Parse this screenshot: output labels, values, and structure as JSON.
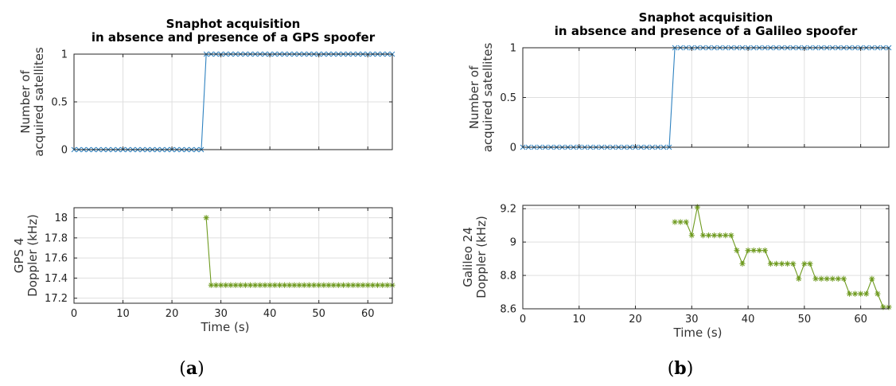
{
  "panels": [
    {
      "caption_pre": "(",
      "caption_letter": "a",
      "caption_post": ")",
      "charts": [
        {
          "type": "line",
          "title_lines": [
            "Snaphot acquisition",
            "in absence and presence of a GPS spoofer"
          ],
          "ylabel_lines": [
            "Number of",
            "acquired satellites"
          ],
          "xlabel": "",
          "xlim": [
            0,
            65
          ],
          "ylim": [
            0,
            1
          ],
          "xticks": [
            0,
            10,
            20,
            30,
            40,
            50,
            60
          ],
          "xtick_labels": [],
          "yticks": [
            0,
            0.5,
            1
          ],
          "ytick_labels": [
            "0",
            "0.5",
            "1"
          ],
          "grid": true,
          "series": [
            {
              "marker": "x",
              "color": "#2f82c0",
              "x_start": 0,
              "x_step": 1,
              "x_end": 65,
              "step_at": 27,
              "before": 0,
              "after": 1
            }
          ]
        },
        {
          "type": "line",
          "title_lines": [],
          "ylabel_lines": [
            "GPS 4",
            "Doppler (kHz)"
          ],
          "xlabel": "Time (s)",
          "xlim": [
            0,
            65
          ],
          "ylim": [
            17.15,
            18.1
          ],
          "xticks": [
            0,
            10,
            20,
            30,
            40,
            50,
            60
          ],
          "xtick_labels": [
            "0",
            "10",
            "20",
            "30",
            "40",
            "50",
            "60"
          ],
          "yticks": [
            17.2,
            17.4,
            17.6,
            17.8,
            18
          ],
          "ytick_labels": [
            "17.2",
            "17.4",
            "17.6",
            "17.8",
            "18"
          ],
          "grid": true,
          "series": [
            {
              "marker": "*",
              "color": "#6e9a1f",
              "points": [
                [
                  27,
                  18.0
                ],
                [
                  28,
                  17.33
                ],
                [
                  29,
                  17.33
                ],
                [
                  30,
                  17.33
                ],
                [
                  31,
                  17.33
                ],
                [
                  32,
                  17.33
                ],
                [
                  33,
                  17.33
                ],
                [
                  34,
                  17.33
                ],
                [
                  35,
                  17.33
                ],
                [
                  36,
                  17.33
                ],
                [
                  37,
                  17.33
                ],
                [
                  38,
                  17.33
                ],
                [
                  39,
                  17.33
                ],
                [
                  40,
                  17.33
                ],
                [
                  41,
                  17.33
                ],
                [
                  42,
                  17.33
                ],
                [
                  43,
                  17.33
                ],
                [
                  44,
                  17.33
                ],
                [
                  45,
                  17.33
                ],
                [
                  46,
                  17.33
                ],
                [
                  47,
                  17.33
                ],
                [
                  48,
                  17.33
                ],
                [
                  49,
                  17.33
                ],
                [
                  50,
                  17.33
                ],
                [
                  51,
                  17.33
                ],
                [
                  52,
                  17.33
                ],
                [
                  53,
                  17.33
                ],
                [
                  54,
                  17.33
                ],
                [
                  55,
                  17.33
                ],
                [
                  56,
                  17.33
                ],
                [
                  57,
                  17.33
                ],
                [
                  58,
                  17.33
                ],
                [
                  59,
                  17.33
                ],
                [
                  60,
                  17.33
                ],
                [
                  61,
                  17.33
                ],
                [
                  62,
                  17.33
                ],
                [
                  63,
                  17.33
                ],
                [
                  64,
                  17.33
                ],
                [
                  65,
                  17.33
                ]
              ]
            }
          ]
        }
      ]
    },
    {
      "caption_pre": "(",
      "caption_letter": "b",
      "caption_post": ")",
      "charts": [
        {
          "type": "line",
          "title_lines": [
            "Snaphot acquisition",
            "in absence and presence of a Galileo spoofer"
          ],
          "ylabel_lines": [
            "Number of",
            "acquired satellites"
          ],
          "xlabel": "",
          "xlim": [
            0,
            65
          ],
          "ylim": [
            0,
            1
          ],
          "xticks": [
            0,
            10,
            20,
            30,
            40,
            50,
            60
          ],
          "xtick_labels": [],
          "yticks": [
            0,
            0.5,
            1
          ],
          "ytick_labels": [
            "0",
            "0.5",
            "1"
          ],
          "grid": true,
          "series": [
            {
              "marker": "x",
              "color": "#2f82c0",
              "x_start": 0,
              "x_step": 1,
              "x_end": 65,
              "step_at": 27,
              "before": 0,
              "after": 1
            }
          ]
        },
        {
          "type": "line",
          "title_lines": [],
          "ylabel_lines": [
            "Galileo 24",
            "Doppler (kHz)"
          ],
          "xlabel": "Time (s)",
          "xlim": [
            0,
            65
          ],
          "ylim": [
            8.6,
            9.22
          ],
          "xticks": [
            0,
            10,
            20,
            30,
            40,
            50,
            60
          ],
          "xtick_labels": [
            "0",
            "10",
            "20",
            "30",
            "40",
            "50",
            "60"
          ],
          "yticks": [
            8.6,
            8.8,
            9,
            9.2
          ],
          "ytick_labels": [
            "8.6",
            "8.8",
            "9",
            "9.2"
          ],
          "grid": true,
          "series": [
            {
              "marker": "*",
              "color": "#6e9a1f",
              "points": [
                [
                  27,
                  9.12
                ],
                [
                  28,
                  9.12
                ],
                [
                  29,
                  9.12
                ],
                [
                  30,
                  9.04
                ],
                [
                  31,
                  9.21
                ],
                [
                  32,
                  9.04
                ],
                [
                  33,
                  9.04
                ],
                [
                  34,
                  9.04
                ],
                [
                  35,
                  9.04
                ],
                [
                  36,
                  9.04
                ],
                [
                  37,
                  9.04
                ],
                [
                  38,
                  8.95
                ],
                [
                  39,
                  8.87
                ],
                [
                  40,
                  8.95
                ],
                [
                  41,
                  8.95
                ],
                [
                  42,
                  8.95
                ],
                [
                  43,
                  8.95
                ],
                [
                  44,
                  8.87
                ],
                [
                  45,
                  8.87
                ],
                [
                  46,
                  8.87
                ],
                [
                  47,
                  8.87
                ],
                [
                  48,
                  8.87
                ],
                [
                  49,
                  8.78
                ],
                [
                  50,
                  8.87
                ],
                [
                  51,
                  8.87
                ],
                [
                  52,
                  8.78
                ],
                [
                  53,
                  8.78
                ],
                [
                  54,
                  8.78
                ],
                [
                  55,
                  8.78
                ],
                [
                  56,
                  8.78
                ],
                [
                  57,
                  8.78
                ],
                [
                  58,
                  8.69
                ],
                [
                  59,
                  8.69
                ],
                [
                  60,
                  8.69
                ],
                [
                  61,
                  8.69
                ],
                [
                  62,
                  8.78
                ],
                [
                  63,
                  8.69
                ],
                [
                  64,
                  8.61
                ],
                [
                  65,
                  8.61
                ]
              ]
            }
          ]
        }
      ]
    }
  ],
  "chart_data": [
    {
      "type": "line",
      "title": "Snaphot acquisition in absence and presence of a GPS spoofer",
      "ylabel": "Number of acquired satellites",
      "xlim": [
        0,
        65
      ],
      "ylim": [
        0,
        1
      ],
      "series": [
        {
          "x_range": [
            0,
            65
          ],
          "step_at": 27,
          "values_before": 0,
          "values_after": 1
        }
      ]
    },
    {
      "type": "line",
      "xlabel": "Time (s)",
      "ylabel": "GPS 4 Doppler (kHz)",
      "xlim": [
        0,
        65
      ],
      "ylim": [
        17.15,
        18.1
      ],
      "series": [
        {
          "x": [
            27,
            28,
            65
          ],
          "values": [
            18.0,
            17.33,
            17.33
          ]
        }
      ]
    },
    {
      "type": "line",
      "title": "Snaphot acquisition in absence and presence of a Galileo spoofer",
      "ylabel": "Number of acquired satellites",
      "xlim": [
        0,
        65
      ],
      "ylim": [
        0,
        1
      ],
      "series": [
        {
          "x_range": [
            0,
            65
          ],
          "step_at": 27,
          "values_before": 0,
          "values_after": 1
        }
      ]
    },
    {
      "type": "line",
      "xlabel": "Time (s)",
      "ylabel": "Galileo 24 Doppler (kHz)",
      "xlim": [
        0,
        65
      ],
      "ylim": [
        8.6,
        9.22
      ],
      "series": [
        {
          "x_range": [
            27,
            65
          ],
          "values_range": [
            8.61,
            9.21
          ]
        }
      ]
    }
  ]
}
